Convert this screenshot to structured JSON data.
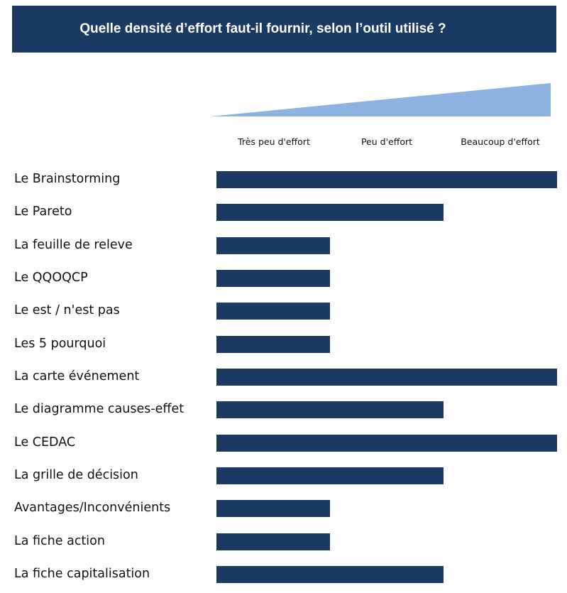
{
  "title": "Quelle densité d’effort faut-il fournir, selon l’outil utilisé ?",
  "colors": {
    "banner": "#1b3a63",
    "bar": "#1b3a63",
    "wedge": "#8db3e2",
    "title_text": "#ffffff"
  },
  "chart_data": {
    "type": "bar",
    "orientation": "horizontal",
    "title": "Quelle densité d’effort faut-il fournir, selon l’outil utilisé ?",
    "scale_labels": [
      "Très peu d'effort",
      "Peu d'effort",
      "Beaucoup d'effort"
    ],
    "xlim": [
      0,
      3
    ],
    "categories": [
      "Le Brainstorming",
      "Le Pareto",
      "La feuille de releve",
      "Le QQOQCP",
      "Le est / n'est pas",
      "Les 5 pourquoi",
      "La carte événement",
      "Le diagramme causes-effet",
      "Le CEDAC",
      "La grille de décision",
      "Avantages/Inconvénients",
      "La fiche action",
      "La fiche capitalisation"
    ],
    "values": [
      3,
      2,
      1,
      1,
      1,
      1,
      3,
      2,
      3,
      2,
      1,
      1,
      2
    ],
    "grid": false,
    "legend": "none"
  }
}
